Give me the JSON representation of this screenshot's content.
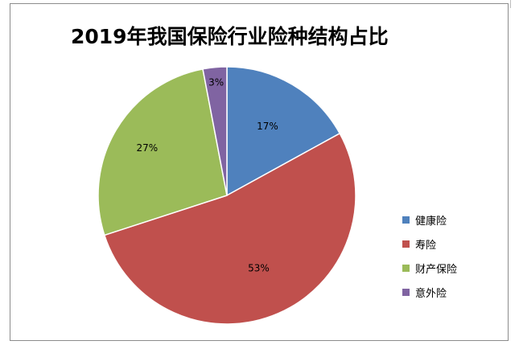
{
  "chart_data": {
    "type": "pie",
    "title": "2019年我国保险行业险种结构占比",
    "start_angle_deg": 0,
    "direction": "clockwise",
    "legend_position": "right",
    "slices": [
      {
        "name": "健康险",
        "value": 17,
        "label": "17%",
        "color": "#4f81bd"
      },
      {
        "name": "寿险",
        "value": 53,
        "label": "53%",
        "color": "#c0504d"
      },
      {
        "name": "财产保险",
        "value": 27,
        "label": "27%",
        "color": "#9bbb59"
      },
      {
        "name": "意外险",
        "value": 3,
        "label": "3%",
        "color": "#8064a2"
      }
    ]
  }
}
